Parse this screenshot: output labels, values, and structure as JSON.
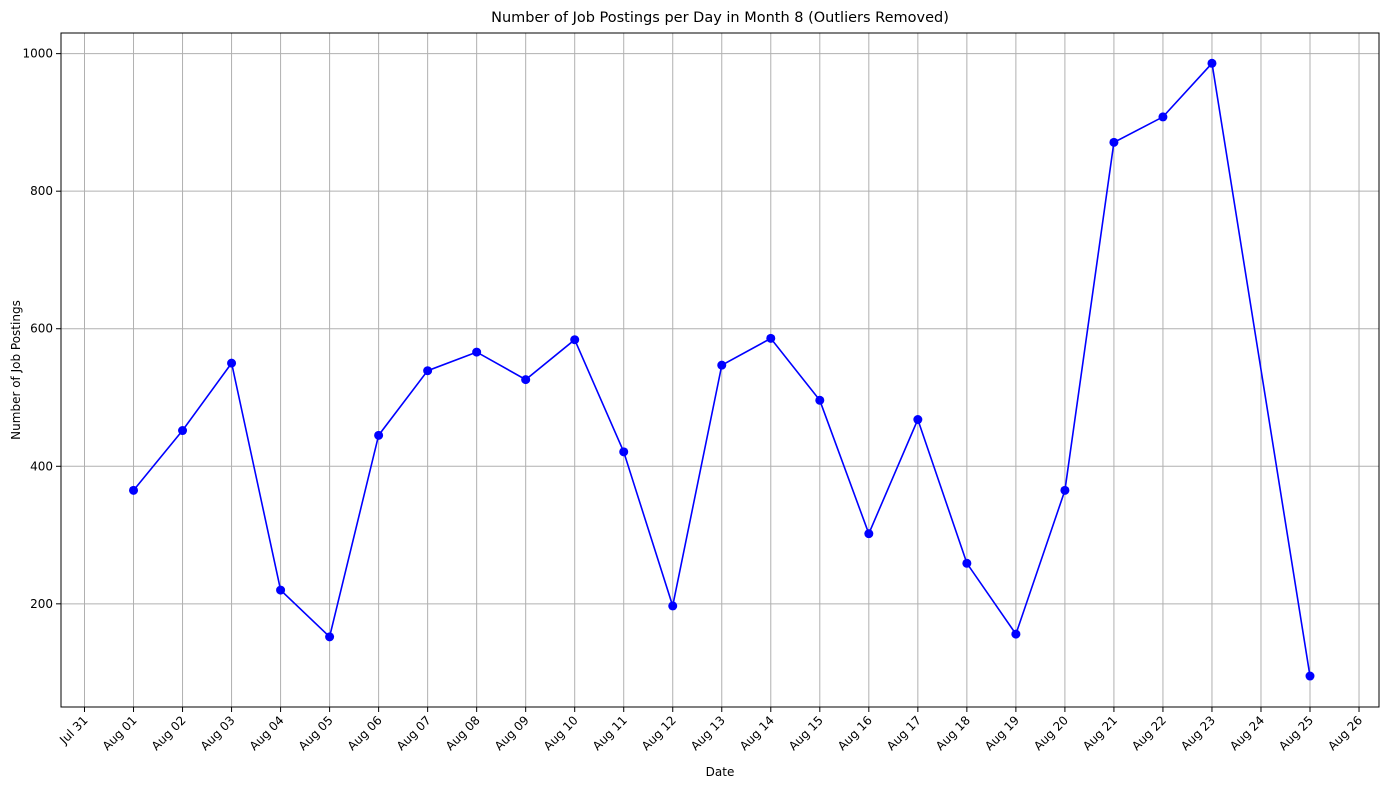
{
  "chart_data": {
    "type": "line",
    "title": "Number of Job Postings per Day in Month 8 (Outliers Removed)",
    "xlabel": "Date",
    "ylabel": "Number of Job Postings",
    "x_tick_labels": [
      "Jul 31",
      "Aug 01",
      "Aug 02",
      "Aug 03",
      "Aug 04",
      "Aug 05",
      "Aug 06",
      "Aug 07",
      "Aug 08",
      "Aug 09",
      "Aug 10",
      "Aug 11",
      "Aug 12",
      "Aug 13",
      "Aug 14",
      "Aug 15",
      "Aug 16",
      "Aug 17",
      "Aug 18",
      "Aug 19",
      "Aug 20",
      "Aug 21",
      "Aug 22",
      "Aug 23",
      "Aug 24",
      "Aug 25",
      "Aug 26"
    ],
    "y_ticks": [
      200,
      400,
      600,
      800,
      1000
    ],
    "ylim": [
      50,
      1030
    ],
    "grid": true,
    "series": [
      {
        "color": "#0000ff",
        "marker": "circle",
        "points": [
          {
            "x": "Aug 01",
            "y": 365
          },
          {
            "x": "Aug 02",
            "y": 452
          },
          {
            "x": "Aug 03",
            "y": 550
          },
          {
            "x": "Aug 04",
            "y": 220
          },
          {
            "x": "Aug 05",
            "y": 152
          },
          {
            "x": "Aug 06",
            "y": 445
          },
          {
            "x": "Aug 07",
            "y": 539
          },
          {
            "x": "Aug 08",
            "y": 566
          },
          {
            "x": "Aug 09",
            "y": 526
          },
          {
            "x": "Aug 10",
            "y": 584
          },
          {
            "x": "Aug 11",
            "y": 421
          },
          {
            "x": "Aug 12",
            "y": 197
          },
          {
            "x": "Aug 13",
            "y": 547
          },
          {
            "x": "Aug 14",
            "y": 586
          },
          {
            "x": "Aug 15",
            "y": 496
          },
          {
            "x": "Aug 16",
            "y": 302
          },
          {
            "x": "Aug 17",
            "y": 468
          },
          {
            "x": "Aug 18",
            "y": 259
          },
          {
            "x": "Aug 19",
            "y": 156
          },
          {
            "x": "Aug 20",
            "y": 365
          },
          {
            "x": "Aug 21",
            "y": 871
          },
          {
            "x": "Aug 22",
            "y": 908
          },
          {
            "x": "Aug 23",
            "y": 986
          },
          {
            "x": "Aug 25",
            "y": 95
          }
        ]
      }
    ]
  }
}
